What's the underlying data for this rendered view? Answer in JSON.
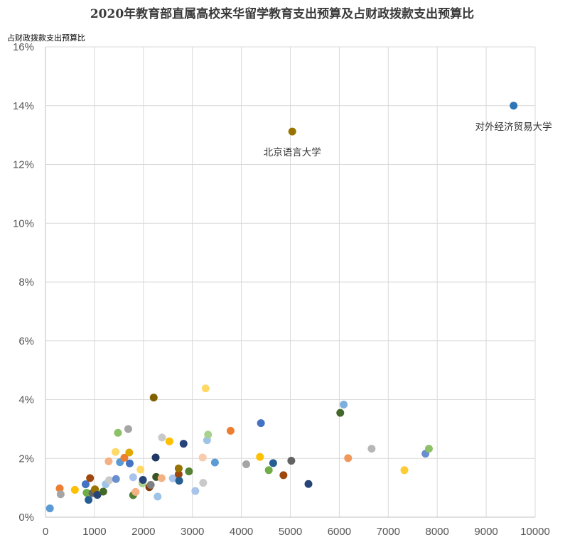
{
  "chart_data": {
    "type": "scatter",
    "title": "2020年教育部直属高校来华留学教育支出预算及占财政拨款支出预算比",
    "ylabel": "占财政拨款支出预算比",
    "xlabel": "",
    "xlim": [
      0,
      10000
    ],
    "ylim": [
      0,
      16
    ],
    "x_ticks": [
      "0",
      "1000",
      "2000",
      "3000",
      "4000",
      "5000",
      "6000",
      "7000",
      "8000",
      "9000",
      "10000"
    ],
    "y_ticks": [
      "0%",
      "2%",
      "4%",
      "6%",
      "8%",
      "10%",
      "12%",
      "14%",
      "16%"
    ],
    "grid": true,
    "points": [
      {
        "x": 90,
        "y": 0.3,
        "color": "#5b9bd5"
      },
      {
        "x": 290,
        "y": 0.98,
        "color": "#ed7d31"
      },
      {
        "x": 310,
        "y": 0.78,
        "color": "#a5a5a5"
      },
      {
        "x": 600,
        "y": 0.93,
        "color": "#ffc000"
      },
      {
        "x": 820,
        "y": 1.12,
        "color": "#4472c4"
      },
      {
        "x": 840,
        "y": 0.83,
        "color": "#70ad47"
      },
      {
        "x": 880,
        "y": 0.59,
        "color": "#255e91"
      },
      {
        "x": 910,
        "y": 1.33,
        "color": "#9e480e"
      },
      {
        "x": 960,
        "y": 0.82,
        "color": "#636363"
      },
      {
        "x": 1010,
        "y": 0.95,
        "color": "#997300"
      },
      {
        "x": 1060,
        "y": 0.76,
        "color": "#264478"
      },
      {
        "x": 1180,
        "y": 0.87,
        "color": "#43682b"
      },
      {
        "x": 1230,
        "y": 1.12,
        "color": "#9dc3e6"
      },
      {
        "x": 1290,
        "y": 1.9,
        "color": "#f4b183"
      },
      {
        "x": 1300,
        "y": 1.26,
        "color": "#c9c9c9"
      },
      {
        "x": 1430,
        "y": 2.22,
        "color": "#ffd966"
      },
      {
        "x": 1440,
        "y": 1.3,
        "color": "#698ed0"
      },
      {
        "x": 1480,
        "y": 2.87,
        "color": "#8cc168"
      },
      {
        "x": 1520,
        "y": 1.87,
        "color": "#5b9bd5"
      },
      {
        "x": 1610,
        "y": 2.02,
        "color": "#ed7d31"
      },
      {
        "x": 1690,
        "y": 3.0,
        "color": "#a5a5a5"
      },
      {
        "x": 1710,
        "y": 2.2,
        "color": "#e0a800"
      },
      {
        "x": 1720,
        "y": 1.83,
        "color": "#4472c4"
      },
      {
        "x": 1790,
        "y": 1.36,
        "color": "#a9c4eb"
      },
      {
        "x": 1790,
        "y": 0.75,
        "color": "#548235"
      },
      {
        "x": 1840,
        "y": 0.86,
        "color": "#f4b183"
      },
      {
        "x": 1940,
        "y": 1.62,
        "color": "#ffd966"
      },
      {
        "x": 1980,
        "y": 1.15,
        "color": "#a9d18e"
      },
      {
        "x": 1990,
        "y": 1.27,
        "color": "#264478"
      },
      {
        "x": 2120,
        "y": 1.02,
        "color": "#843c0c"
      },
      {
        "x": 2150,
        "y": 1.1,
        "color": "#7f7f7f"
      },
      {
        "x": 2210,
        "y": 4.07,
        "color": "#806000"
      },
      {
        "x": 2250,
        "y": 2.03,
        "color": "#1f3864"
      },
      {
        "x": 2260,
        "y": 1.37,
        "color": "#375623"
      },
      {
        "x": 2290,
        "y": 0.7,
        "color": "#9dc3e6"
      },
      {
        "x": 2370,
        "y": 1.33,
        "color": "#f4b183"
      },
      {
        "x": 2380,
        "y": 2.71,
        "color": "#c9c9c9"
      },
      {
        "x": 2530,
        "y": 2.58,
        "color": "#ffc000"
      },
      {
        "x": 2600,
        "y": 1.32,
        "color": "#a9c4eb"
      },
      {
        "x": 2720,
        "y": 1.46,
        "color": "#9e480e"
      },
      {
        "x": 2720,
        "y": 1.66,
        "color": "#997300"
      },
      {
        "x": 2730,
        "y": 1.24,
        "color": "#255e91"
      },
      {
        "x": 2820,
        "y": 2.5,
        "color": "#264478"
      },
      {
        "x": 2930,
        "y": 1.56,
        "color": "#548235"
      },
      {
        "x": 3060,
        "y": 0.89,
        "color": "#a9c4eb"
      },
      {
        "x": 3210,
        "y": 2.03,
        "color": "#f8cbad"
      },
      {
        "x": 3220,
        "y": 1.17,
        "color": "#c9c9c9"
      },
      {
        "x": 3270,
        "y": 4.38,
        "color": "#ffd966"
      },
      {
        "x": 3300,
        "y": 2.62,
        "color": "#9dc3e6"
      },
      {
        "x": 3320,
        "y": 2.81,
        "color": "#a9d18e"
      },
      {
        "x": 3460,
        "y": 1.86,
        "color": "#5b9bd5"
      },
      {
        "x": 3780,
        "y": 2.94,
        "color": "#ed7d31"
      },
      {
        "x": 4100,
        "y": 1.8,
        "color": "#a5a5a5"
      },
      {
        "x": 4380,
        "y": 2.05,
        "color": "#ffc000"
      },
      {
        "x": 4400,
        "y": 3.2,
        "color": "#4472c4"
      },
      {
        "x": 4560,
        "y": 1.6,
        "color": "#70ad47"
      },
      {
        "x": 4650,
        "y": 1.84,
        "color": "#255e91"
      },
      {
        "x": 4860,
        "y": 1.43,
        "color": "#9e480e"
      },
      {
        "x": 5020,
        "y": 1.92,
        "color": "#636363"
      },
      {
        "x": 5040,
        "y": 13.12,
        "color": "#997300",
        "label": "北京语言大学"
      },
      {
        "x": 5370,
        "y": 1.13,
        "color": "#264478"
      },
      {
        "x": 6020,
        "y": 3.55,
        "color": "#43682b"
      },
      {
        "x": 6090,
        "y": 3.83,
        "color": "#7cafdd"
      },
      {
        "x": 6180,
        "y": 2.01,
        "color": "#f1975a"
      },
      {
        "x": 6660,
        "y": 2.33,
        "color": "#b7b7b7"
      },
      {
        "x": 7330,
        "y": 1.6,
        "color": "#ffcd33"
      },
      {
        "x": 7760,
        "y": 2.16,
        "color": "#698ed0"
      },
      {
        "x": 7830,
        "y": 2.33,
        "color": "#8cc168"
      },
      {
        "x": 9560,
        "y": 14.0,
        "color": "#2e75b6",
        "label": "对外经济贸易大学"
      }
    ]
  }
}
